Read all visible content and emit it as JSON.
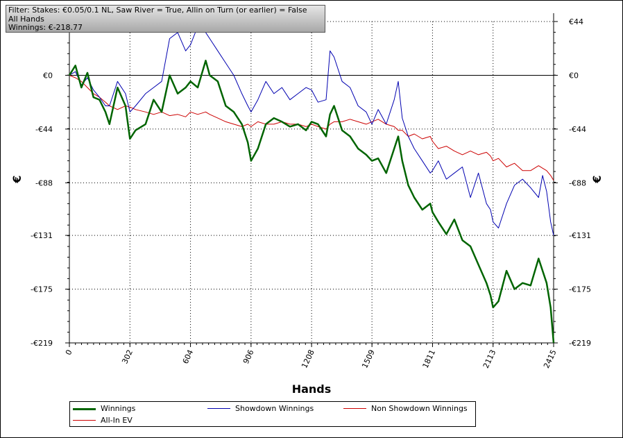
{
  "filter_box": {
    "line1": "Filter: Stakes: €0.05/0.1 NL, Saw River = True, Allin on Turn (or earlier) = False",
    "line2": "All Hands",
    "line3": "Winnings: €-218.77"
  },
  "chart_data": {
    "type": "line",
    "xlabel": "Hands",
    "ylabel_left": "€",
    "ylabel_right": "€",
    "xlim": [
      0,
      2415
    ],
    "ylim": [
      -219,
      44
    ],
    "grid": true,
    "legend_position": "bottom",
    "x_ticks": [
      0,
      302,
      604,
      906,
      1208,
      1509,
      1811,
      2113,
      2415
    ],
    "x_tick_labels": [
      "0",
      "302",
      "604",
      "906",
      "1208",
      "1509",
      "1811",
      "2113",
      "2415"
    ],
    "y_ticks": [
      44,
      0,
      -44,
      -88,
      -131,
      -175,
      -219
    ],
    "y_tick_labels": [
      "€44",
      "€0",
      "-€44",
      "-€88",
      "-€131",
      "-€175",
      "-€219"
    ],
    "series": [
      {
        "name": "Winnings",
        "color": "#006400",
        "x": [
          0,
          30,
          60,
          90,
          120,
          150,
          180,
          200,
          240,
          280,
          302,
          330,
          380,
          420,
          460,
          500,
          540,
          580,
          604,
          640,
          680,
          700,
          740,
          780,
          820,
          860,
          890,
          906,
          940,
          980,
          1020,
          1060,
          1100,
          1140,
          1180,
          1208,
          1240,
          1280,
          1300,
          1320,
          1360,
          1400,
          1440,
          1480,
          1509,
          1540,
          1580,
          1620,
          1640,
          1660,
          1690,
          1720,
          1760,
          1800,
          1811,
          1840,
          1880,
          1920,
          1960,
          2000,
          2040,
          2080,
          2100,
          2113,
          2140,
          2180,
          2220,
          2260,
          2300,
          2340,
          2360,
          2380,
          2400,
          2415
        ],
        "values": [
          0,
          8,
          -10,
          2,
          -18,
          -20,
          -30,
          -40,
          -10,
          -25,
          -52,
          -45,
          -40,
          -20,
          -30,
          0,
          -15,
          -10,
          -5,
          -10,
          12,
          0,
          -5,
          -25,
          -30,
          -40,
          -55,
          -70,
          -60,
          -40,
          -35,
          -38,
          -42,
          -40,
          -45,
          -38,
          -40,
          -50,
          -32,
          -25,
          -45,
          -50,
          -60,
          -65,
          -70,
          -68,
          -80,
          -60,
          -50,
          -70,
          -90,
          -100,
          -110,
          -105,
          -112,
          -120,
          -130,
          -118,
          -135,
          -140,
          -155,
          -170,
          -180,
          -190,
          -185,
          -160,
          -175,
          -170,
          -172,
          -150,
          -160,
          -170,
          -190,
          -219
        ]
      },
      {
        "name": "Showdown Winnings",
        "color": "#0000b0",
        "x": [
          0,
          30,
          60,
          90,
          120,
          150,
          180,
          200,
          240,
          280,
          302,
          330,
          380,
          420,
          460,
          500,
          540,
          580,
          604,
          640,
          680,
          700,
          740,
          780,
          820,
          860,
          890,
          906,
          940,
          980,
          1020,
          1060,
          1100,
          1140,
          1180,
          1208,
          1240,
          1280,
          1300,
          1320,
          1360,
          1400,
          1440,
          1480,
          1509,
          1540,
          1580,
          1620,
          1640,
          1660,
          1690,
          1720,
          1760,
          1800,
          1811,
          1840,
          1880,
          1920,
          1960,
          2000,
          2040,
          2080,
          2100,
          2113,
          2140,
          2180,
          2220,
          2260,
          2300,
          2340,
          2360,
          2380,
          2400,
          2415
        ],
        "values": [
          0,
          3,
          -8,
          -2,
          -12,
          -18,
          -25,
          -25,
          -5,
          -15,
          -30,
          -25,
          -15,
          -10,
          -5,
          30,
          35,
          20,
          25,
          40,
          35,
          30,
          20,
          10,
          0,
          -15,
          -25,
          -30,
          -20,
          -5,
          -15,
          -10,
          -20,
          -15,
          -10,
          -12,
          -22,
          -20,
          20,
          15,
          -5,
          -10,
          -25,
          -30,
          -40,
          -28,
          -40,
          -20,
          -5,
          -35,
          -50,
          -60,
          -70,
          -80,
          -78,
          -70,
          -85,
          -80,
          -75,
          -100,
          -80,
          -105,
          -110,
          -120,
          -125,
          -105,
          -90,
          -85,
          -92,
          -100,
          -82,
          -95,
          -120,
          -131
        ]
      },
      {
        "name": "Non Showdown Winnings",
        "color": "#cc0000",
        "x": [
          0,
          30,
          60,
          90,
          120,
          150,
          180,
          200,
          240,
          280,
          302,
          330,
          380,
          420,
          460,
          500,
          540,
          580,
          604,
          640,
          680,
          700,
          740,
          780,
          820,
          860,
          890,
          906,
          940,
          980,
          1020,
          1060,
          1100,
          1140,
          1180,
          1208,
          1240,
          1280,
          1300,
          1320,
          1360,
          1400,
          1440,
          1480,
          1509,
          1540,
          1580,
          1620,
          1640,
          1660,
          1690,
          1720,
          1760,
          1800,
          1811,
          1840,
          1880,
          1920,
          1960,
          2000,
          2040,
          2080,
          2100,
          2113,
          2140,
          2180,
          2220,
          2260,
          2300,
          2340,
          2360,
          2380,
          2400,
          2415
        ],
        "values": [
          0,
          -2,
          -5,
          -10,
          -15,
          -18,
          -22,
          -25,
          -28,
          -25,
          -26,
          -28,
          -30,
          -32,
          -30,
          -33,
          -32,
          -34,
          -30,
          -32,
          -30,
          -32,
          -35,
          -38,
          -40,
          -42,
          -40,
          -42,
          -38,
          -40,
          -40,
          -38,
          -40,
          -40,
          -42,
          -40,
          -42,
          -44,
          -40,
          -38,
          -38,
          -36,
          -38,
          -40,
          -38,
          -36,
          -40,
          -42,
          -45,
          -45,
          -50,
          -48,
          -52,
          -50,
          -54,
          -60,
          -58,
          -62,
          -65,
          -62,
          -65,
          -63,
          -66,
          -70,
          -68,
          -75,
          -72,
          -78,
          -78,
          -74,
          -76,
          -78,
          -82,
          -86
        ]
      }
    ]
  },
  "legend": {
    "items": [
      {
        "label": "Winnings",
        "color": "#006400"
      },
      {
        "label": "Showdown Winnings",
        "color": "#0000b0"
      },
      {
        "label": "Non Showdown Winnings",
        "color": "#cc0000"
      },
      {
        "label": "All-In EV",
        "color": "#cc0000"
      }
    ]
  }
}
